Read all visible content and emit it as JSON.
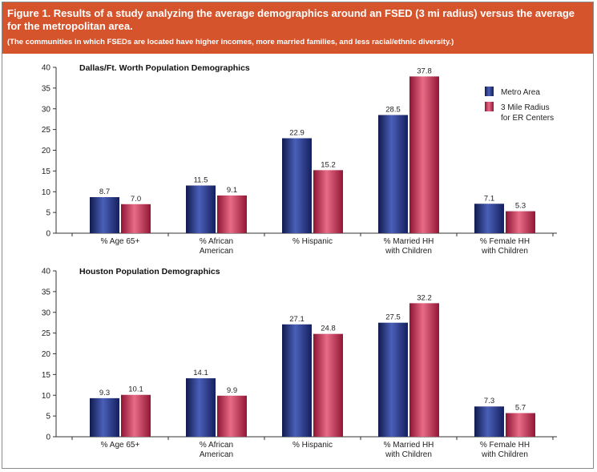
{
  "figure": {
    "title": "Figure 1. Results of a study analyzing the average demographics around an FSED (3 mi radius) versus the average for the metropolitan area.",
    "subtitle": "(The communities in which FSEDs are located have higher incomes, more married families, and less racial/ethnic diversity.)"
  },
  "colors": {
    "header_bg": "#d5542c",
    "metro_area": "#1f2d7a",
    "er_centers": "#c2254a"
  },
  "chart_data": [
    {
      "type": "bar",
      "title": "Dallas/Ft. Worth Population Demographics",
      "categories": [
        "% Age 65+",
        "% African American",
        "% Hispanic",
        "% Married HH with Children",
        "% Female HH with Children"
      ],
      "category_lines": [
        [
          "% Age 65+"
        ],
        [
          "% African",
          "American"
        ],
        [
          "% Hispanic"
        ],
        [
          "% Married HH",
          "with Children"
        ],
        [
          "% Female HH",
          "with Children"
        ]
      ],
      "series": [
        {
          "name": "Metro Area",
          "values": [
            8.7,
            11.5,
            22.9,
            28.5,
            7.1
          ],
          "labels": [
            "8.7",
            "11.5",
            "22.9",
            "28.5",
            "7.1"
          ]
        },
        {
          "name": "3 Mile Radius for ER Centers",
          "legend_lines": [
            "3 Mile Radius",
            "for ER Centers"
          ],
          "values": [
            7.0,
            9.1,
            15.2,
            37.8,
            5.3
          ],
          "labels": [
            "7.0",
            "9.1",
            "15.2",
            "37.8",
            "5.3"
          ]
        }
      ],
      "ylim": [
        0,
        40
      ],
      "yticks": [
        0,
        5,
        10,
        15,
        20,
        25,
        30,
        35,
        40
      ],
      "legend": "top-right",
      "grid": false
    },
    {
      "type": "bar",
      "title": "Houston Population Demographics",
      "categories": [
        "% Age 65+",
        "% African American",
        "% Hispanic",
        "% Married HH with Children",
        "% Female HH with Children"
      ],
      "category_lines": [
        [
          "% Age 65+"
        ],
        [
          "% African",
          "American"
        ],
        [
          "% Hispanic"
        ],
        [
          "% Married HH",
          "with Children"
        ],
        [
          "% Female HH",
          "with Children"
        ]
      ],
      "series": [
        {
          "name": "Metro Area",
          "values": [
            9.3,
            14.1,
            27.1,
            27.5,
            7.3
          ],
          "labels": [
            "9.3",
            "14.1",
            "27.1",
            "27.5",
            "7.3"
          ]
        },
        {
          "name": "3 Mile Radius for ER Centers",
          "values": [
            10.1,
            9.9,
            24.8,
            32.2,
            5.7
          ],
          "labels": [
            "10.1",
            "9.9",
            "24.8",
            "32.2",
            "5.7"
          ]
        }
      ],
      "ylim": [
        0,
        40
      ],
      "yticks": [
        0,
        5,
        10,
        15,
        20,
        25,
        30,
        35,
        40
      ],
      "legend": "none",
      "grid": false
    }
  ]
}
